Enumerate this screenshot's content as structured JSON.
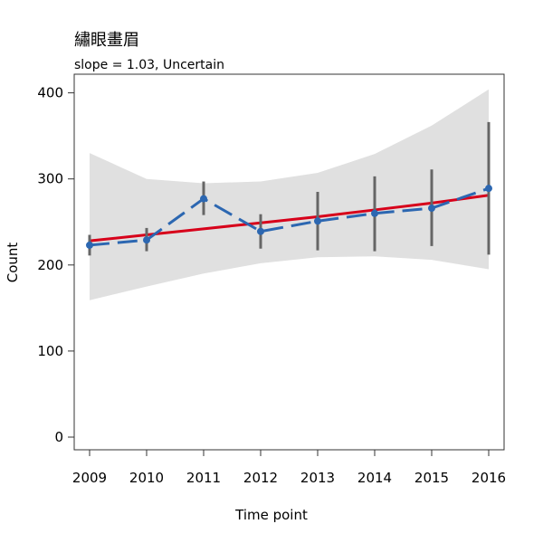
{
  "chart_data": {
    "type": "line",
    "title": "繡眼畫眉",
    "subtitle": "slope = 1.03, Uncertain",
    "xlabel": "Time point",
    "ylabel": "Count",
    "categories": [
      "2009",
      "2010",
      "2011",
      "2012",
      "2013",
      "2014",
      "2015",
      "2016"
    ],
    "yticks": [
      0,
      100,
      200,
      300,
      400
    ],
    "ylim": [
      -15,
      415
    ],
    "grid": false,
    "series": [
      {
        "kind": "observed",
        "values": [
          223,
          229,
          277,
          239,
          251,
          260,
          266,
          289
        ],
        "error_low": [
          211,
          216,
          258,
          219,
          217,
          216,
          222,
          212
        ],
        "error_high": [
          235,
          243,
          297,
          259,
          285,
          303,
          311,
          366
        ],
        "color": "#2c67b1"
      },
      {
        "kind": "trend",
        "values": [
          228,
          235,
          242,
          249,
          256,
          264,
          272,
          281
        ],
        "color": "#d7001a"
      }
    ],
    "confidence_band": {
      "lower": [
        159,
        175,
        190,
        202,
        209,
        210,
        206,
        195
      ],
      "upper": [
        330,
        300,
        295,
        297,
        307,
        329,
        362,
        404
      ],
      "color": "#e0e0e0"
    },
    "errorbar_color": "#666666"
  }
}
